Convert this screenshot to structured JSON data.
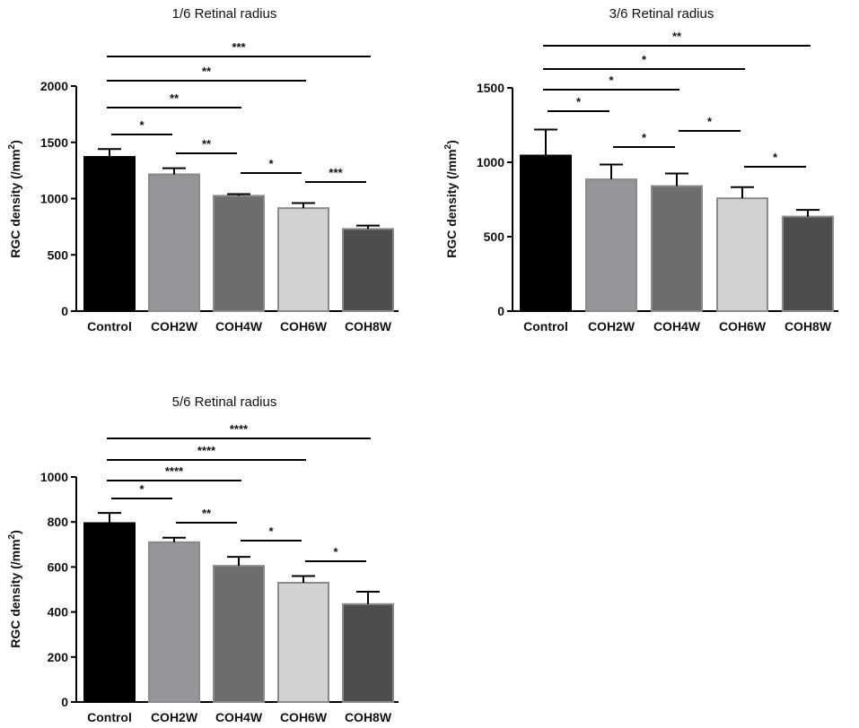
{
  "chart_data": [
    {
      "type": "bar",
      "title": "1/6 Retinal radius",
      "ylabel": "RGC density (/mm²)",
      "ylabel_main": "RGC density (/mm",
      "ylabel_sup": "2",
      "ylabel_close": ")",
      "xlabel": "",
      "categories": [
        "Control",
        "COH2W",
        "COH4W",
        "COH6W",
        "COH8W"
      ],
      "values": [
        1370,
        1215,
        1025,
        915,
        730
      ],
      "errors": [
        70,
        55,
        15,
        45,
        30
      ],
      "colors": [
        "#000000",
        "#96969a",
        "#6d6d6d",
        "#d2d2d2",
        "#4d4d4d"
      ],
      "ylim": [
        0,
        2000
      ],
      "yticks": [
        0,
        500,
        1000,
        1500,
        2000
      ],
      "ytick_labels": [
        "0",
        "500",
        "1000",
        "1500",
        "2000"
      ],
      "significance": [
        {
          "from": 0,
          "to": 1,
          "label": "*"
        },
        {
          "from": 1,
          "to": 2,
          "label": "**"
        },
        {
          "from": 2,
          "to": 3,
          "label": "*"
        },
        {
          "from": 3,
          "to": 4,
          "label": "***"
        },
        {
          "from": 0,
          "to": 2,
          "label": "**"
        },
        {
          "from": 0,
          "to": 3,
          "label": "**"
        },
        {
          "from": 0,
          "to": 4,
          "label": "***"
        }
      ]
    },
    {
      "type": "bar",
      "title": "3/6 Retinal radius",
      "ylabel": "RGC density (/mm²)",
      "ylabel_main": "RGC density (/mm",
      "ylabel_sup": "2",
      "ylabel_close": ")",
      "xlabel": "",
      "categories": [
        "Control",
        "COH2W",
        "COH4W",
        "COH6W",
        "COH8W"
      ],
      "values": [
        1045,
        885,
        840,
        758,
        635
      ],
      "errors": [
        175,
        100,
        85,
        75,
        45
      ],
      "colors": [
        "#000000",
        "#96969a",
        "#6d6d6d",
        "#d2d2d2",
        "#4d4d4d"
      ],
      "ylim": [
        0,
        1500
      ],
      "yticks": [
        0,
        500,
        1000,
        1500
      ],
      "ytick_labels": [
        "0",
        "500",
        "1000",
        "1500"
      ],
      "significance": [
        {
          "from": 0,
          "to": 1,
          "label": "*"
        },
        {
          "from": 1,
          "to": 2,
          "label": "*"
        },
        {
          "from": 2,
          "to": 3,
          "label": "*"
        },
        {
          "from": 3,
          "to": 4,
          "label": "*"
        },
        {
          "from": 0,
          "to": 2,
          "label": "*"
        },
        {
          "from": 0,
          "to": 3,
          "label": "*"
        },
        {
          "from": 0,
          "to": 4,
          "label": "**"
        }
      ]
    },
    {
      "type": "bar",
      "title": "5/6 Retinal radius",
      "ylabel": "RGC density (/mm²)",
      "ylabel_main": "RGC density (/mm",
      "ylabel_sup": "2",
      "ylabel_close": ")",
      "xlabel": "",
      "categories": [
        "Control",
        "COH2W",
        "COH4W",
        "COH6W",
        "COH8W"
      ],
      "values": [
        795,
        710,
        605,
        530,
        435
      ],
      "errors": [
        45,
        20,
        40,
        30,
        55
      ],
      "colors": [
        "#000000",
        "#96969a",
        "#6d6d6d",
        "#d2d2d2",
        "#4d4d4d"
      ],
      "ylim": [
        0,
        1000
      ],
      "yticks": [
        0,
        200,
        400,
        600,
        800,
        1000
      ],
      "ytick_labels": [
        "0",
        "200",
        "400",
        "600",
        "800",
        "1000"
      ],
      "significance": [
        {
          "from": 0,
          "to": 1,
          "label": "*"
        },
        {
          "from": 1,
          "to": 2,
          "label": "**"
        },
        {
          "from": 2,
          "to": 3,
          "label": "*"
        },
        {
          "from": 3,
          "to": 4,
          "label": "*"
        },
        {
          "from": 0,
          "to": 2,
          "label": "****"
        },
        {
          "from": 0,
          "to": 3,
          "label": "****"
        },
        {
          "from": 0,
          "to": 4,
          "label": "****"
        }
      ]
    }
  ]
}
